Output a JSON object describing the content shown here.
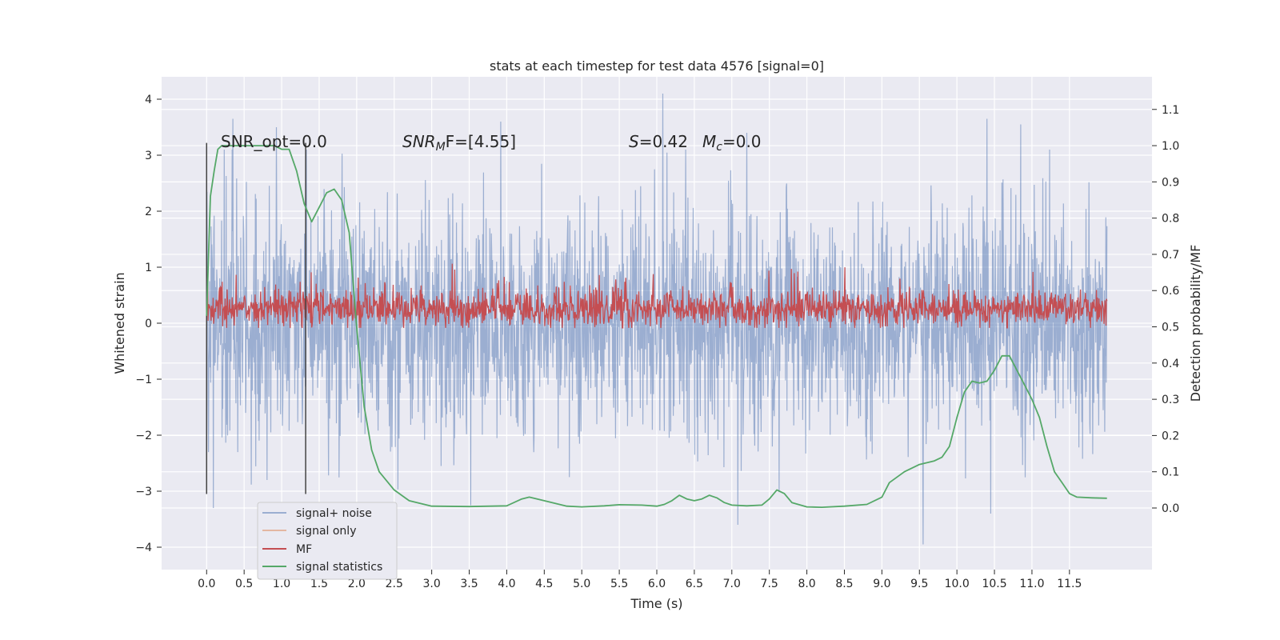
{
  "chart_data": {
    "type": "line",
    "title": "stats at each timestep for test data 4576 [signal=0]",
    "xlabel": "Time (s)",
    "ylabel": "Whitened strain",
    "y2label": "Detection probability/MF",
    "xlim": [
      -0.6,
      12.6
    ],
    "ylim": [
      -4.4,
      4.4
    ],
    "y2lim": [
      -0.17,
      1.19
    ],
    "xticks": [
      0.0,
      0.5,
      1.0,
      1.5,
      2.0,
      2.5,
      3.0,
      3.5,
      4.0,
      4.5,
      5.0,
      5.5,
      6.0,
      6.5,
      7.0,
      7.5,
      8.0,
      8.5,
      9.0,
      9.5,
      10.0,
      10.5,
      11.0,
      11.5
    ],
    "xtick_labels": [
      "0.0",
      "0.5",
      "1.0",
      "1.5",
      "2.0",
      "2.5",
      "3.0",
      "3.5",
      "4.0",
      "4.5",
      "5.0",
      "5.5",
      "6.0",
      "6.5",
      "7.0",
      "7.5",
      "8.0",
      "8.5",
      "9.0",
      "9.5",
      "10.0",
      "10.5",
      "11.0",
      "11.5"
    ],
    "yticks": [
      -4,
      -3,
      -2,
      -1,
      0,
      1,
      2,
      3,
      4
    ],
    "ytick_labels": [
      "−4",
      "−3",
      "−2",
      "−1",
      "0",
      "1",
      "2",
      "3",
      "4"
    ],
    "y2ticks": [
      0.0,
      0.1,
      0.2,
      0.3,
      0.4,
      0.5,
      0.6,
      0.7,
      0.8,
      0.9,
      1.0,
      1.1
    ],
    "y2tick_labels": [
      "0.0",
      "0.1",
      "0.2",
      "0.3",
      "0.4",
      "0.5",
      "0.6",
      "0.7",
      "0.8",
      "0.9",
      "1.0",
      "1.1"
    ],
    "grid": true,
    "legend_position": "bottom-left",
    "series": [
      {
        "name": "signal+ noise",
        "color": "#4c72b0",
        "axis": "left",
        "style": "dense noise trace",
        "t_range": [
          0.0,
          12.0
        ],
        "typical_std": 1.0,
        "peak_values": [
          {
            "t": 0.35,
            "y": 3.65
          },
          {
            "t": 0.93,
            "y": 3.5
          },
          {
            "t": 3.92,
            "y": 3.6
          },
          {
            "t": 6.08,
            "y": 4.1
          },
          {
            "t": 7.2,
            "y": 3.4
          },
          {
            "t": 10.4,
            "y": 3.65
          },
          {
            "t": 10.85,
            "y": 3.55
          },
          {
            "t": 0.09,
            "y": -3.3
          },
          {
            "t": 3.52,
            "y": -3.25
          },
          {
            "t": 7.08,
            "y": -3.6
          },
          {
            "t": 9.55,
            "y": -3.95
          },
          {
            "t": 10.45,
            "y": -3.4
          }
        ]
      },
      {
        "name": "signal only",
        "color": "#dd8452",
        "axis": "left",
        "values": []
      },
      {
        "name": "MF",
        "color": "#c44e52",
        "axis": "right",
        "style": "dense noise trace",
        "t_range": [
          0.0,
          12.0
        ],
        "mean": 0.55,
        "spread": 0.025
      },
      {
        "name": "signal statistics",
        "color": "#55a868",
        "axis": "right",
        "x": [
          0.0,
          0.05,
          0.1,
          0.15,
          0.2,
          0.3,
          0.5,
          0.7,
          0.9,
          1.0,
          1.1,
          1.2,
          1.3,
          1.4,
          1.5,
          1.6,
          1.7,
          1.8,
          1.9,
          2.0,
          2.1,
          2.2,
          2.3,
          2.5,
          2.7,
          3.0,
          3.5,
          4.0,
          4.2,
          4.3,
          4.5,
          4.8,
          5.0,
          5.3,
          5.5,
          5.8,
          6.0,
          6.1,
          6.2,
          6.3,
          6.4,
          6.5,
          6.6,
          6.7,
          6.8,
          6.9,
          7.0,
          7.2,
          7.4,
          7.5,
          7.6,
          7.7,
          7.8,
          8.0,
          8.2,
          8.5,
          8.8,
          9.0,
          9.1,
          9.3,
          9.5,
          9.7,
          9.8,
          9.9,
          10.0,
          10.1,
          10.2,
          10.3,
          10.4,
          10.5,
          10.6,
          10.7,
          10.8,
          10.9,
          11.0,
          11.1,
          11.2,
          11.3,
          11.4,
          11.5,
          11.6,
          11.8,
          12.0
        ],
        "values": [
          0.53,
          0.86,
          0.93,
          0.99,
          1.0,
          1.0,
          1.0,
          1.0,
          1.0,
          0.99,
          0.99,
          0.93,
          0.84,
          0.79,
          0.83,
          0.87,
          0.88,
          0.85,
          0.76,
          0.5,
          0.28,
          0.16,
          0.1,
          0.05,
          0.02,
          0.005,
          0.004,
          0.006,
          0.025,
          0.03,
          0.02,
          0.005,
          0.003,
          0.006,
          0.009,
          0.008,
          0.005,
          0.01,
          0.02,
          0.035,
          0.025,
          0.02,
          0.025,
          0.035,
          0.028,
          0.015,
          0.008,
          0.006,
          0.008,
          0.025,
          0.05,
          0.04,
          0.015,
          0.003,
          0.002,
          0.005,
          0.01,
          0.03,
          0.07,
          0.1,
          0.12,
          0.13,
          0.14,
          0.17,
          0.25,
          0.32,
          0.35,
          0.345,
          0.35,
          0.38,
          0.42,
          0.42,
          0.38,
          0.34,
          0.3,
          0.25,
          0.17,
          0.1,
          0.07,
          0.04,
          0.03,
          0.028,
          0.027
        ]
      }
    ],
    "vlines": [
      0.0,
      1.32
    ],
    "vline_color": "#444444",
    "vline_ylim": [
      -3.05,
      3.22
    ],
    "annotations": [
      {
        "id": "snr-opt",
        "text": "SNR_opt=0.0",
        "x": 0.2,
        "y": 3.3
      },
      {
        "id": "snr-mf",
        "text": "SNR_MF=[4.55]",
        "x": 2.6,
        "y": 3.3
      },
      {
        "id": "s-mc",
        "text": "S=0.42   M_c=0.0",
        "x": 5.6,
        "y": 3.3
      }
    ]
  },
  "legend": {
    "items": [
      {
        "label": "signal+ noise",
        "color": "#4c72b0",
        "alpha": 0.5
      },
      {
        "label": "signal only",
        "color": "#dd8452",
        "alpha": 0.5
      },
      {
        "label": "MF",
        "color": "#c44e52",
        "alpha": 1.0
      },
      {
        "label": "signal statistics",
        "color": "#55a868",
        "alpha": 1.0
      }
    ]
  },
  "annotations_text": {
    "snr_opt": "SNR_opt=0.0",
    "snr_mf_a": "SNR",
    "snr_mf_sub": "M",
    "snr_mf_b": "F=[4.55]",
    "s_a": "S",
    "s_b": "=0.42",
    "mc_a": "M",
    "mc_sub": "c",
    "mc_b": "=0.0"
  },
  "colors": {
    "axes_background": "#eaeaf2",
    "grid": "#ffffff"
  }
}
